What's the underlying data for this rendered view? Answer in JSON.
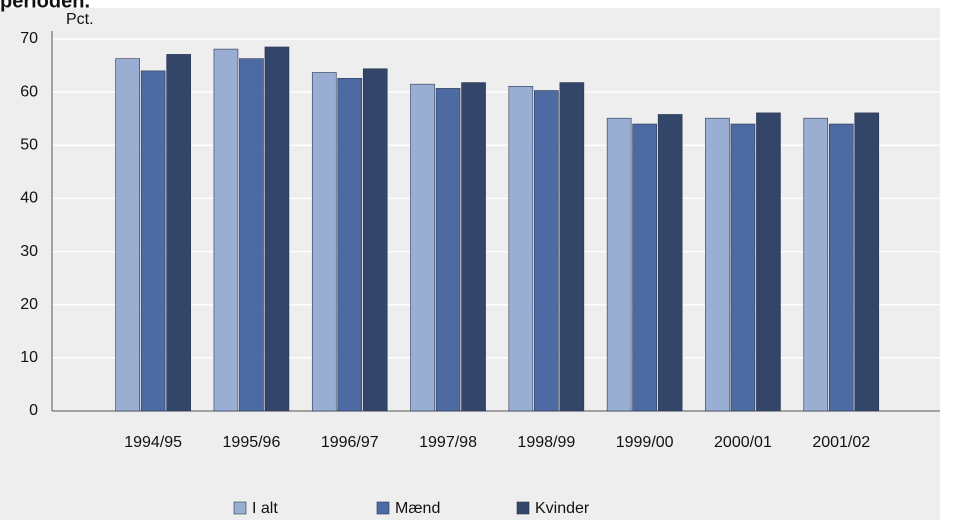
{
  "chart_data": {
    "type": "bar",
    "title": "perioden.",
    "y_label": "Pct.",
    "categories": [
      "1994/95",
      "1995/96",
      "1996/97",
      "1997/98",
      "1998/99",
      "1999/00",
      "2000/01",
      "2001/02"
    ],
    "series": [
      {
        "name": "I alt",
        "color": "#9aaed4",
        "values": [
          66.3,
          68.1,
          63.7,
          61.5,
          61.1,
          55.1,
          55.1,
          55.1
        ]
      },
      {
        "name": "Mænd",
        "color": "#4d6aa3",
        "values": [
          64,
          66.3,
          62.6,
          60.7,
          60.3,
          54,
          54,
          54
        ]
      },
      {
        "name": "Kvinder",
        "color": "#334568",
        "values": [
          67.1,
          68.5,
          64.4,
          61.8,
          61.8,
          55.8,
          56.1,
          56.1
        ]
      }
    ],
    "ylim": [
      0,
      70
    ],
    "yticks": [
      0,
      10,
      20,
      30,
      40,
      50,
      60,
      70
    ],
    "grid": true,
    "legend": "bottom"
  }
}
